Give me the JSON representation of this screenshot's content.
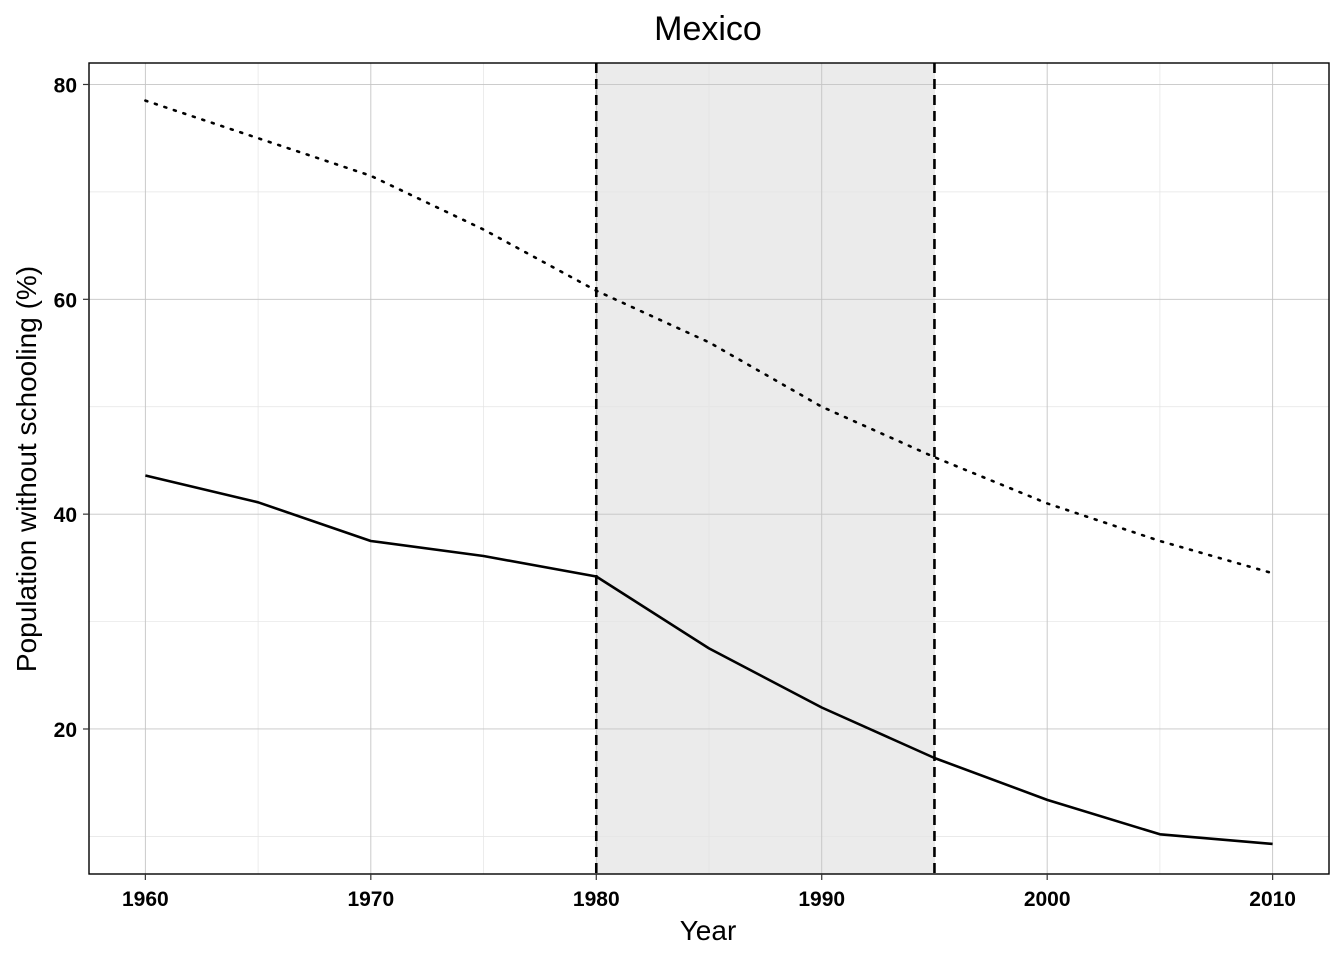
{
  "chart_data": {
    "type": "line",
    "title": "Mexico",
    "xlabel": "Year",
    "ylabel": "Population without schooling (%)",
    "xlim": [
      1957.5,
      2012.5
    ],
    "ylim": [
      6.5,
      82
    ],
    "x_ticks": [
      1960,
      1970,
      1980,
      1990,
      2000,
      2010
    ],
    "x_ticks_minor": [
      1965,
      1975,
      1985,
      1995,
      2005
    ],
    "y_ticks": [
      20,
      40,
      60,
      80
    ],
    "y_ticks_minor": [
      10,
      30,
      50,
      70
    ],
    "grid": true,
    "legend": "none",
    "shaded_region": {
      "x_start": 1980,
      "x_end": 1995
    },
    "vertical_lines": [
      1980,
      1995
    ],
    "x": [
      1960,
      1965,
      1970,
      1975,
      1980,
      1985,
      1990,
      1995,
      2000,
      2005,
      2010
    ],
    "series": [
      {
        "style": "solid",
        "values": [
          43.6,
          41.1,
          37.5,
          36.1,
          34.2,
          27.5,
          22.0,
          17.3,
          13.4,
          10.2,
          9.3
        ]
      },
      {
        "style": "dotted",
        "values": [
          78.5,
          75.0,
          71.5,
          66.5,
          60.8,
          56.0,
          50.0,
          45.3,
          41.0,
          37.5,
          34.5
        ]
      }
    ],
    "colors": {
      "line": "#000000",
      "shade": "#ebebeb",
      "grid": "#c4c4c4"
    }
  }
}
